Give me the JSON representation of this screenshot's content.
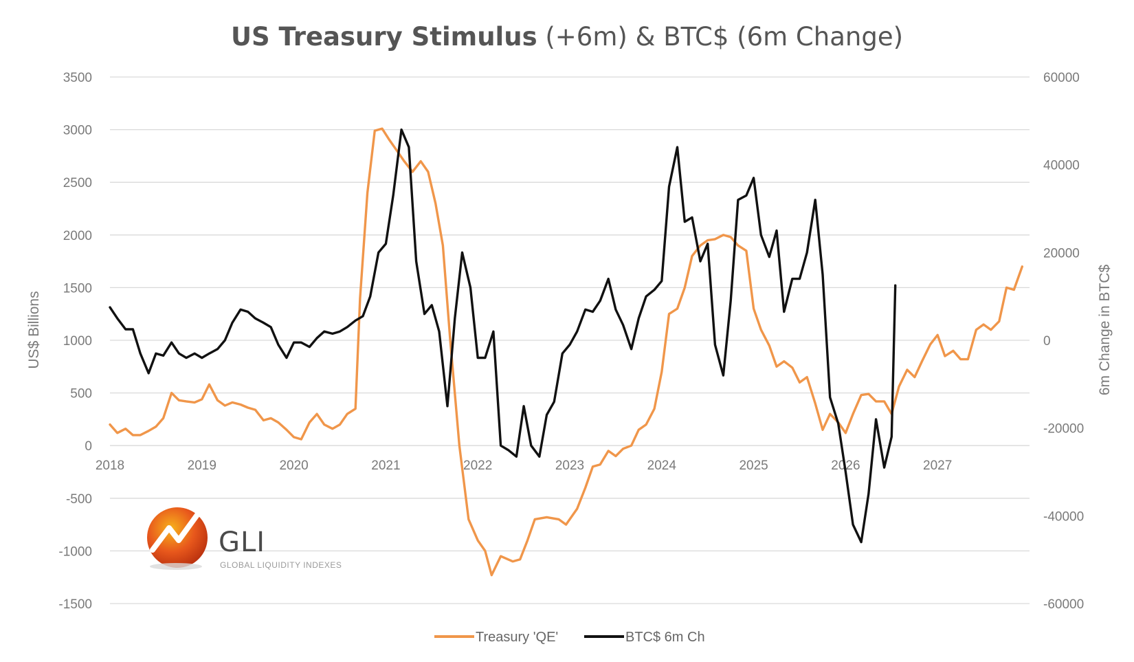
{
  "chart_data": {
    "type": "line",
    "title": {
      "bold": "US Treasury Stimulus",
      "rest": " (+6m) & BTC$ (6m Change)"
    },
    "ylabel_left": "US$ Billions",
    "ylabel_right": "6m Change in BTC$",
    "ylim_left": [
      -1500,
      3500
    ],
    "ylim_right": [
      -60000,
      60000
    ],
    "yticks_left": [
      3500,
      3000,
      2500,
      2000,
      1500,
      1000,
      500,
      0,
      -500,
      -1000,
      -1500
    ],
    "yticks_right": [
      60000,
      40000,
      20000,
      0,
      -20000,
      -40000,
      -60000
    ],
    "x_range": [
      2018,
      2028
    ],
    "x_tick_labels": [
      "2018",
      "2019",
      "2020",
      "2021",
      "2022",
      "2023",
      "2024",
      "2025",
      "2026",
      "2027"
    ],
    "grid": true,
    "legend_position": "bottom",
    "series": [
      {
        "name": "Treasury 'QE'",
        "axis": "left",
        "color": "#f0964a",
        "points": [
          [
            2018.0,
            200
          ],
          [
            2018.08,
            120
          ],
          [
            2018.17,
            160
          ],
          [
            2018.25,
            100
          ],
          [
            2018.33,
            100
          ],
          [
            2018.42,
            140
          ],
          [
            2018.5,
            180
          ],
          [
            2018.58,
            260
          ],
          [
            2018.67,
            500
          ],
          [
            2018.75,
            430
          ],
          [
            2018.83,
            420
          ],
          [
            2018.92,
            410
          ],
          [
            2019.0,
            440
          ],
          [
            2019.08,
            580
          ],
          [
            2019.17,
            430
          ],
          [
            2019.25,
            380
          ],
          [
            2019.33,
            410
          ],
          [
            2019.42,
            390
          ],
          [
            2019.5,
            360
          ],
          [
            2019.58,
            340
          ],
          [
            2019.67,
            240
          ],
          [
            2019.75,
            260
          ],
          [
            2019.83,
            220
          ],
          [
            2019.92,
            150
          ],
          [
            2020.0,
            80
          ],
          [
            2020.08,
            60
          ],
          [
            2020.17,
            220
          ],
          [
            2020.25,
            300
          ],
          [
            2020.33,
            200
          ],
          [
            2020.42,
            160
          ],
          [
            2020.5,
            200
          ],
          [
            2020.58,
            300
          ],
          [
            2020.67,
            350
          ],
          [
            2020.72,
            1400
          ],
          [
            2020.8,
            2400
          ],
          [
            2020.88,
            2990
          ],
          [
            2020.96,
            3010
          ],
          [
            2021.04,
            2900
          ],
          [
            2021.12,
            2800
          ],
          [
            2021.2,
            2700
          ],
          [
            2021.29,
            2600
          ],
          [
            2021.38,
            2700
          ],
          [
            2021.46,
            2600
          ],
          [
            2021.54,
            2300
          ],
          [
            2021.62,
            1900
          ],
          [
            2021.7,
            1000
          ],
          [
            2021.8,
            0
          ],
          [
            2021.9,
            -700
          ],
          [
            2022.0,
            -900
          ],
          [
            2022.08,
            -1000
          ],
          [
            2022.15,
            -1230
          ],
          [
            2022.25,
            -1050
          ],
          [
            2022.38,
            -1100
          ],
          [
            2022.46,
            -1080
          ],
          [
            2022.54,
            -900
          ],
          [
            2022.62,
            -700
          ],
          [
            2022.75,
            -680
          ],
          [
            2022.88,
            -700
          ],
          [
            2022.96,
            -750
          ],
          [
            2023.08,
            -600
          ],
          [
            2023.17,
            -400
          ],
          [
            2023.25,
            -200
          ],
          [
            2023.33,
            -180
          ],
          [
            2023.42,
            -50
          ],
          [
            2023.5,
            -100
          ],
          [
            2023.58,
            -30
          ],
          [
            2023.67,
            0
          ],
          [
            2023.75,
            150
          ],
          [
            2023.83,
            200
          ],
          [
            2023.92,
            350
          ],
          [
            2024.0,
            700
          ],
          [
            2024.08,
            1250
          ],
          [
            2024.17,
            1300
          ],
          [
            2024.25,
            1500
          ],
          [
            2024.33,
            1800
          ],
          [
            2024.42,
            1900
          ],
          [
            2024.5,
            1950
          ],
          [
            2024.58,
            1960
          ],
          [
            2024.67,
            2000
          ],
          [
            2024.75,
            1980
          ],
          [
            2024.83,
            1900
          ],
          [
            2024.92,
            1850
          ],
          [
            2025.0,
            1300
          ],
          [
            2025.08,
            1100
          ],
          [
            2025.17,
            950
          ],
          [
            2025.25,
            750
          ],
          [
            2025.33,
            800
          ],
          [
            2025.42,
            740
          ],
          [
            2025.5,
            600
          ],
          [
            2025.58,
            650
          ],
          [
            2025.67,
            400
          ],
          [
            2025.75,
            150
          ],
          [
            2025.83,
            300
          ],
          [
            2025.92,
            220
          ],
          [
            2026.0,
            120
          ],
          [
            2026.08,
            300
          ],
          [
            2026.17,
            480
          ],
          [
            2026.25,
            490
          ],
          [
            2026.33,
            420
          ],
          [
            2026.42,
            420
          ],
          [
            2026.5,
            300
          ],
          [
            2026.58,
            560
          ],
          [
            2026.67,
            720
          ],
          [
            2026.75,
            650
          ],
          [
            2026.83,
            800
          ],
          [
            2026.92,
            960
          ],
          [
            2027.0,
            1050
          ],
          [
            2027.08,
            850
          ],
          [
            2027.17,
            900
          ],
          [
            2027.25,
            820
          ],
          [
            2027.33,
            820
          ],
          [
            2027.42,
            1100
          ],
          [
            2027.5,
            1150
          ],
          [
            2027.58,
            1100
          ],
          [
            2027.67,
            1180
          ],
          [
            2027.75,
            1500
          ],
          [
            2027.83,
            1480
          ],
          [
            2027.92,
            1700
          ]
        ]
      },
      {
        "name": "BTC$ 6m Ch",
        "axis": "right",
        "color": "#111111",
        "points": [
          [
            2018.0,
            7500
          ],
          [
            2018.08,
            5000
          ],
          [
            2018.17,
            2500
          ],
          [
            2018.25,
            2500
          ],
          [
            2018.33,
            -3000
          ],
          [
            2018.42,
            -7500
          ],
          [
            2018.5,
            -3000
          ],
          [
            2018.58,
            -3500
          ],
          [
            2018.67,
            -500
          ],
          [
            2018.75,
            -3000
          ],
          [
            2018.83,
            -4000
          ],
          [
            2018.92,
            -3000
          ],
          [
            2019.0,
            -4000
          ],
          [
            2019.08,
            -3000
          ],
          [
            2019.17,
            -2000
          ],
          [
            2019.25,
            0
          ],
          [
            2019.33,
            4000
          ],
          [
            2019.42,
            7000
          ],
          [
            2019.5,
            6500
          ],
          [
            2019.58,
            5000
          ],
          [
            2019.67,
            4000
          ],
          [
            2019.75,
            3000
          ],
          [
            2019.83,
            -1000
          ],
          [
            2019.92,
            -4000
          ],
          [
            2020.0,
            -500
          ],
          [
            2020.08,
            -500
          ],
          [
            2020.17,
            -1500
          ],
          [
            2020.25,
            500
          ],
          [
            2020.33,
            2000
          ],
          [
            2020.42,
            1500
          ],
          [
            2020.5,
            2000
          ],
          [
            2020.58,
            3000
          ],
          [
            2020.67,
            4500
          ],
          [
            2020.75,
            5500
          ],
          [
            2020.83,
            10000
          ],
          [
            2020.92,
            20000
          ],
          [
            2021.0,
            22000
          ],
          [
            2021.08,
            33000
          ],
          [
            2021.17,
            48000
          ],
          [
            2021.25,
            44000
          ],
          [
            2021.33,
            18000
          ],
          [
            2021.42,
            6000
          ],
          [
            2021.5,
            8000
          ],
          [
            2021.58,
            2000
          ],
          [
            2021.67,
            -15000
          ],
          [
            2021.75,
            5000
          ],
          [
            2021.83,
            20000
          ],
          [
            2021.92,
            12000
          ],
          [
            2022.0,
            -4000
          ],
          [
            2022.08,
            -4000
          ],
          [
            2022.17,
            2000
          ],
          [
            2022.25,
            -24000
          ],
          [
            2022.33,
            -25000
          ],
          [
            2022.42,
            -26500
          ],
          [
            2022.5,
            -15000
          ],
          [
            2022.58,
            -24000
          ],
          [
            2022.67,
            -26500
          ],
          [
            2022.75,
            -17000
          ],
          [
            2022.83,
            -14000
          ],
          [
            2022.92,
            -3000
          ],
          [
            2023.0,
            -1000
          ],
          [
            2023.08,
            2000
          ],
          [
            2023.17,
            7000
          ],
          [
            2023.25,
            6500
          ],
          [
            2023.33,
            9000
          ],
          [
            2023.42,
            14000
          ],
          [
            2023.5,
            7000
          ],
          [
            2023.58,
            3500
          ],
          [
            2023.67,
            -2000
          ],
          [
            2023.75,
            5000
          ],
          [
            2023.83,
            10000
          ],
          [
            2023.92,
            11500
          ],
          [
            2024.0,
            13500
          ],
          [
            2024.08,
            35000
          ],
          [
            2024.17,
            44000
          ],
          [
            2024.25,
            27000
          ],
          [
            2024.33,
            28000
          ],
          [
            2024.42,
            18000
          ],
          [
            2024.5,
            22000
          ],
          [
            2024.58,
            -1000
          ],
          [
            2024.67,
            -8000
          ],
          [
            2024.75,
            9000
          ],
          [
            2024.83,
            32000
          ],
          [
            2024.92,
            33000
          ],
          [
            2025.0,
            37000
          ],
          [
            2025.08,
            24000
          ],
          [
            2025.17,
            19000
          ],
          [
            2025.25,
            25000
          ],
          [
            2025.33,
            6500
          ],
          [
            2025.42,
            14000
          ],
          [
            2025.5,
            14000
          ],
          [
            2025.58,
            20000
          ],
          [
            2025.67,
            32000
          ],
          [
            2025.75,
            15000
          ],
          [
            2025.83,
            -13000
          ],
          [
            2025.92,
            -19000
          ],
          [
            2026.0,
            -30000
          ],
          [
            2026.08,
            -42000
          ],
          [
            2026.17,
            -46000
          ],
          [
            2026.25,
            -35000
          ],
          [
            2026.33,
            -18000
          ],
          [
            2026.42,
            -29000
          ],
          [
            2026.5,
            -22000
          ],
          [
            2026.54,
            12500
          ]
        ]
      }
    ]
  },
  "legend": {
    "items": [
      {
        "label": "Treasury 'QE'",
        "color": "#f0964a"
      },
      {
        "label": "BTC$ 6m Ch",
        "color": "#111111"
      }
    ]
  },
  "logo": {
    "name": "GLI",
    "subtitle": "GLOBAL LIQUIDITY INDEXES",
    "colors": [
      "#f7b21c",
      "#e8581c",
      "#b72f0e"
    ]
  }
}
